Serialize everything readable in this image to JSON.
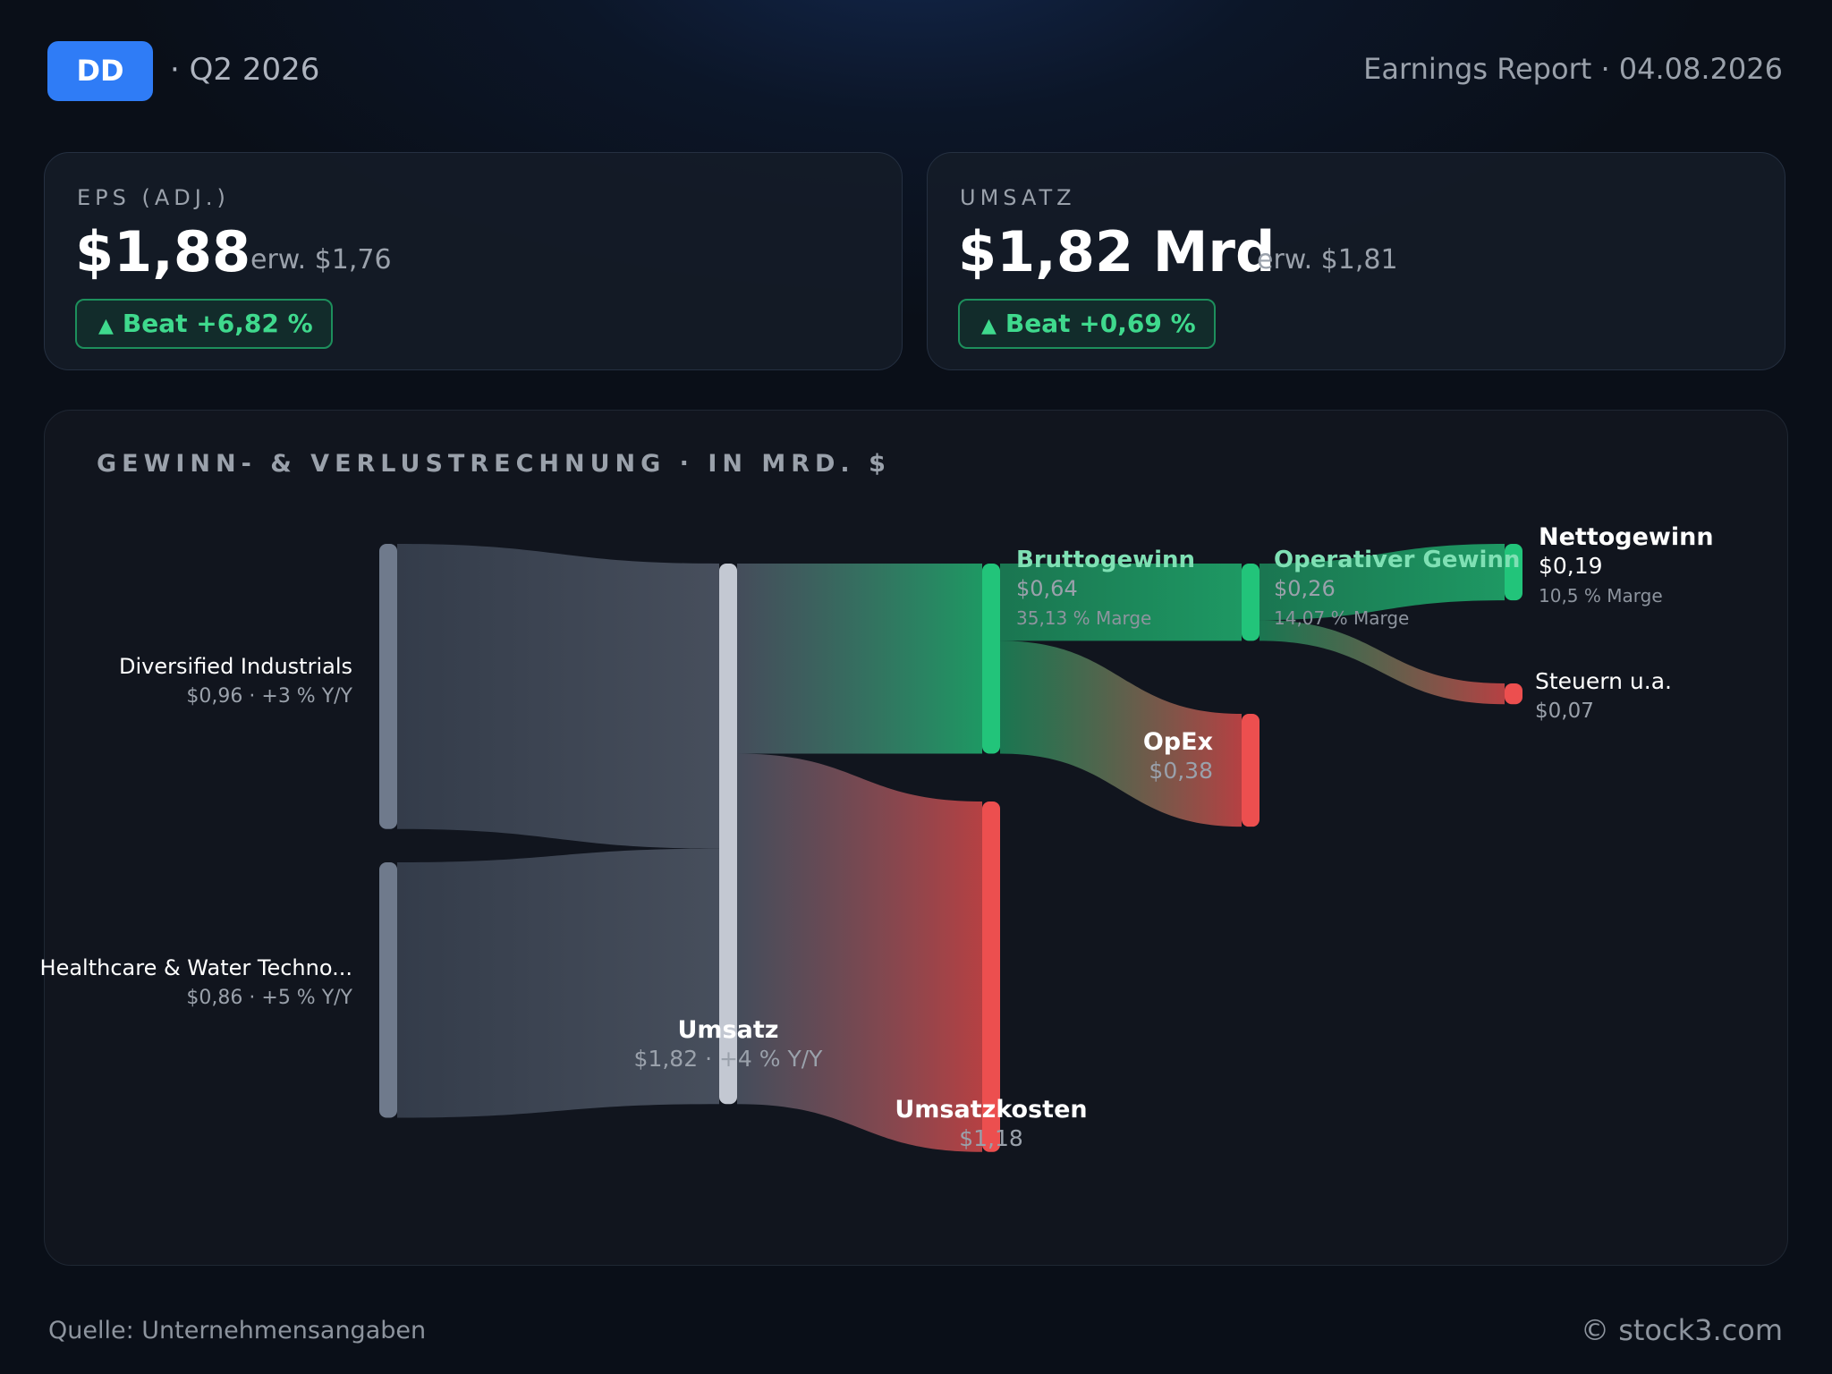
{
  "header": {
    "ticker": "DD",
    "period": "· Q2 2026",
    "report": "Earnings Report · 04.08.2026"
  },
  "kpis": {
    "eps": {
      "label": "EPS (ADJ.)",
      "value": "$1,88",
      "estimate": "erw. $1,76",
      "badge": "Beat +6,82 %",
      "badge_icon": "triangle-up-icon"
    },
    "revenue": {
      "label": "UMSATZ",
      "value": "$1,82 Mrd",
      "estimate": "erw. $1,81",
      "badge": "Beat +0,69 %",
      "badge_icon": "triangle-up-icon"
    }
  },
  "panel": {
    "title": "GEWINN- & VERLUSTRECHNUNG · IN MRD. $"
  },
  "colors": {
    "segment": "#6f7a8c",
    "revenue": "#c3c8d2",
    "profit": "#22c47a",
    "cost": "#ec4f4f",
    "accent": "#2f7cf6",
    "beat": "#3fd98d"
  },
  "chart_data": {
    "type": "sankey",
    "title": "GEWINN- & VERLUSTRECHNUNG · IN MRD. $",
    "unit": "Mrd. $",
    "nodes": [
      {
        "id": "di",
        "name": "Diversified Industrials",
        "sub": "$0,96 · +3 % Y/Y",
        "value": 0.96,
        "kind": "segment",
        "col": 0
      },
      {
        "id": "hw",
        "name": "Healthcare & Water Techno...",
        "sub": "$0,86 · +5 % Y/Y",
        "value": 0.86,
        "kind": "segment",
        "col": 0
      },
      {
        "id": "rev",
        "name": "Umsatz",
        "sub": "$1,82 · +4 % Y/Y",
        "value": 1.82,
        "kind": "revenue",
        "col": 1
      },
      {
        "id": "gp",
        "name": "Bruttogewinn",
        "sub": "$0,64",
        "note": "35,13 % Marge",
        "value": 0.64,
        "kind": "profit",
        "col": 2
      },
      {
        "id": "cogs",
        "name": "Umsatzkosten",
        "sub": "$1,18",
        "value": 1.18,
        "kind": "cost",
        "col": 2
      },
      {
        "id": "op",
        "name": "Operativer Gewinn",
        "sub": "$0,26",
        "note": "14,07 % Marge",
        "value": 0.26,
        "kind": "profit",
        "col": 3
      },
      {
        "id": "opex",
        "name": "OpEx",
        "sub": "$0,38",
        "value": 0.38,
        "kind": "cost",
        "col": 3
      },
      {
        "id": "net",
        "name": "Nettogewinn",
        "sub": "$0,19",
        "note": "10,5 % Marge",
        "value": 0.19,
        "kind": "profit",
        "col": 4
      },
      {
        "id": "tax",
        "name": "Steuern u.a.",
        "sub": "$0,07",
        "value": 0.07,
        "kind": "cost",
        "col": 4
      }
    ],
    "links": [
      {
        "source": "di",
        "target": "rev",
        "value": 0.96
      },
      {
        "source": "hw",
        "target": "rev",
        "value": 0.86
      },
      {
        "source": "rev",
        "target": "gp",
        "value": 0.64
      },
      {
        "source": "rev",
        "target": "cogs",
        "value": 1.18
      },
      {
        "source": "gp",
        "target": "op",
        "value": 0.26
      },
      {
        "source": "gp",
        "target": "opex",
        "value": 0.38
      },
      {
        "source": "op",
        "target": "net",
        "value": 0.19
      },
      {
        "source": "op",
        "target": "tax",
        "value": 0.07
      }
    ]
  },
  "footer": {
    "source": "Quelle: Unternehmensangaben",
    "copyright": "© stock3.com"
  }
}
